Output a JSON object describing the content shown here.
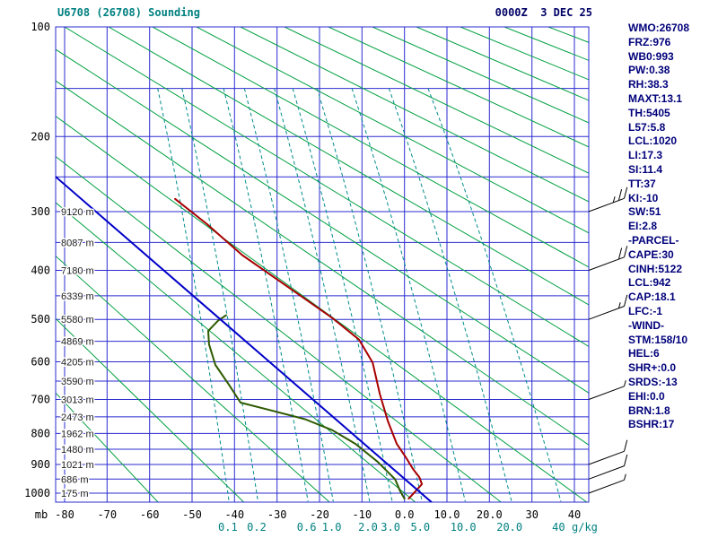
{
  "header": {
    "title": "U6708 (26708) Sounding",
    "datetime": "0000Z  3 DEC 25"
  },
  "stats": {
    "lines": [
      "WMO:26708",
      "FRZ:976",
      "WB0:993",
      "PW:0.38",
      "RH:38.3",
      "MAXT:13.1",
      "TH:5405",
      "L57:5.8",
      "LCL:1020",
      "LI:17.3",
      "SI:11.4",
      "TT:37",
      "KI:-10",
      "SW:51",
      "EI:2.8",
      "-PARCEL-",
      "CAPE:30",
      "CINH:5122",
      "LCL:942",
      "CAP:18.1",
      "LFC:-1",
      "-WIND-",
      "STM:158/10",
      "HEL:6",
      "SHR+:0.0",
      "SRDS:-13",
      "EHI:0.0",
      "BRN:1.8",
      "BSHR:17"
    ]
  },
  "axes": {
    "pressure_unit": "mb",
    "mixing_ratio_unit": "g/kg",
    "pressure_labels": [
      100,
      200,
      300,
      400,
      500,
      600,
      700,
      800,
      900,
      1000
    ],
    "temperature_values": [
      -80,
      -70,
      -60,
      -50,
      -40,
      -30,
      -20,
      -10,
      0,
      10,
      20,
      30,
      40
    ],
    "temperature_labels": [
      "-80",
      "-70",
      "-60",
      "-50",
      "-40",
      "-30",
      "-20",
      "-10",
      "0.0",
      "10.0",
      "20.0",
      "30",
      "40"
    ]
  },
  "chart_data": {
    "type": "line",
    "diagram": "stuve-sounding-skewt",
    "title": "U6708 (26708) Sounding",
    "pressure_axis_mb": {
      "top": 100,
      "bottom": 1030,
      "labeled": [
        100,
        200,
        300,
        400,
        500,
        600,
        700,
        800,
        900,
        1000
      ]
    },
    "temperature_axis_c": {
      "min": -80,
      "max": 40,
      "step": 10
    },
    "pressure_gridlines_mb": [
      100,
      150,
      200,
      250,
      300,
      350,
      400,
      450,
      500,
      550,
      600,
      650,
      700,
      750,
      800,
      850,
      900,
      950,
      1000
    ],
    "dry_adiabats_theta_c": {
      "min": -60,
      "max": 340,
      "step": 20
    },
    "mixing_ratio_lines": {
      "values": [
        0.1,
        0.2,
        0.6,
        1.0,
        2.0,
        3.0,
        5.0,
        10.0,
        20.0,
        40
      ],
      "labels": [
        "0.1",
        "0.2",
        "0.6",
        "1.0",
        "2.0",
        "3.0",
        "5.0",
        "10.0",
        "20.0",
        "40"
      ]
    },
    "height_labels": [
      {
        "p_mb": 300,
        "label": "9120 m"
      },
      {
        "p_mb": 350,
        "label": "8087 m"
      },
      {
        "p_mb": 400,
        "label": "7180 m"
      },
      {
        "p_mb": 450,
        "label": "6339 m"
      },
      {
        "p_mb": 500,
        "label": "5580 m"
      },
      {
        "p_mb": 550,
        "label": "4869 m"
      },
      {
        "p_mb": 600,
        "label": "4205 m"
      },
      {
        "p_mb": 650,
        "label": "3590 m"
      },
      {
        "p_mb": 700,
        "label": "3013 m"
      },
      {
        "p_mb": 750,
        "label": "2473 m"
      },
      {
        "p_mb": 800,
        "label": "1962 m"
      },
      {
        "p_mb": 850,
        "label": "1480 m"
      },
      {
        "p_mb": 900,
        "label": "1021 m"
      },
      {
        "p_mb": 950,
        "label": "686 m"
      },
      {
        "p_mb": 1000,
        "label": "175 m"
      }
    ],
    "series": [
      {
        "name": "temperature",
        "color": "#a80000",
        "points_p_t": [
          [
            1020,
            1.0
          ],
          [
            993,
            2.6
          ],
          [
            968,
            4.1
          ],
          [
            943,
            3.5
          ],
          [
            915,
            2.0
          ],
          [
            876,
            0.3
          ],
          [
            833,
            -1.8
          ],
          [
            763,
            -3.9
          ],
          [
            685,
            -5.8
          ],
          [
            602,
            -7.5
          ],
          [
            546,
            -10.7
          ],
          [
            497,
            -17.0
          ],
          [
            431,
            -27.6
          ],
          [
            372,
            -38.2
          ],
          [
            319,
            -46.6
          ],
          [
            281,
            -54.0
          ]
        ]
      },
      {
        "name": "dewpoint",
        "color": "#2d5a00",
        "points_p_t": [
          [
            1020,
            0.0
          ],
          [
            993,
            -1.0
          ],
          [
            951,
            -2.2
          ],
          [
            890,
            -6.4
          ],
          [
            833,
            -11.5
          ],
          [
            790,
            -17.0
          ],
          [
            757,
            -23.4
          ],
          [
            730,
            -31.8
          ],
          [
            709,
            -38.6
          ],
          [
            660,
            -41.3
          ],
          [
            608,
            -44.5
          ],
          [
            557,
            -46.0
          ],
          [
            526,
            -46.2
          ],
          [
            503,
            -43.9
          ],
          [
            491,
            -42.0
          ]
        ]
      },
      {
        "name": "parcel",
        "color": "#0000c8",
        "points_p_t": [
          [
            1032,
            6.3
          ],
          [
            250,
            -82.1
          ]
        ]
      }
    ],
    "wind_barbs": [
      {
        "p_mb": 300,
        "speed_kt": 25
      },
      {
        "p_mb": 400,
        "speed_kt": 20
      },
      {
        "p_mb": 500,
        "speed_kt": 15
      },
      {
        "p_mb": 700,
        "speed_kt": 5
      },
      {
        "p_mb": 900,
        "speed_kt": 10
      },
      {
        "p_mb": 950,
        "speed_kt": 10
      },
      {
        "p_mb": 1000,
        "speed_kt": 5
      }
    ],
    "colors": {
      "grid": "#2b2bd0",
      "dry_adiabat": "#00a040",
      "mixing_ratio": "#008b8b"
    }
  }
}
